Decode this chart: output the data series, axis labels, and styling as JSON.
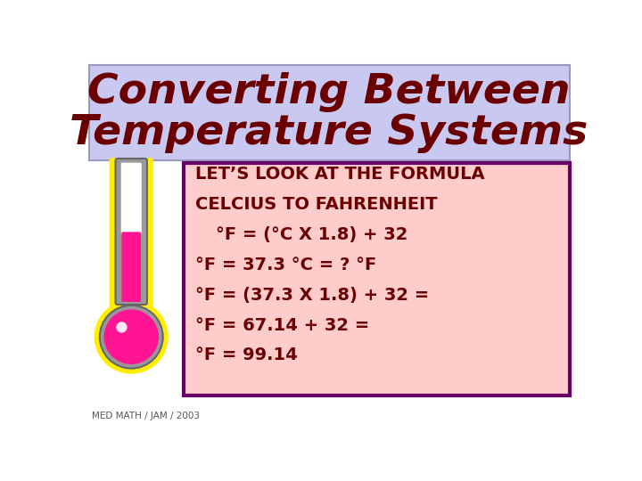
{
  "title_line1": "Converting Between",
  "title_line2": "Temperature Systems",
  "title_bg": "#c8c8f0",
  "title_color": "#6b0000",
  "title_border": "#9999bb",
  "content_bg": "#ffcccc",
  "content_border": "#660066",
  "content_color": "#6b0000",
  "bg_color": "#ffffff",
  "lines": [
    {
      "text": "LET’S LOOK AT THE FORMULA",
      "bold": true,
      "indent": false,
      "fontsize": 14
    },
    {
      "text": "CELCIUS TO FAHRENHEIT",
      "bold": true,
      "indent": false,
      "fontsize": 14
    },
    {
      "text": "°F = (°C X 1.8) + 32",
      "bold": true,
      "indent": true,
      "fontsize": 14
    },
    {
      "text": "°F = 37.3 °C = ? °F",
      "bold": true,
      "indent": false,
      "fontsize": 14
    },
    {
      "text": "°F = (37.3 X 1.8) + 32 =",
      "bold": true,
      "indent": false,
      "fontsize": 14
    },
    {
      "text": "°F = 67.14 + 32 =",
      "bold": true,
      "indent": false,
      "fontsize": 14
    },
    {
      "text": "°F = 99.14",
      "bold": true,
      "indent": false,
      "fontsize": 14
    }
  ],
  "footer": "MED MATH / JAM / 2003",
  "footer_color": "#555555",
  "therm_yellow": "#ffee00",
  "therm_gray": "#999999",
  "therm_pink": "#ff1493",
  "therm_white": "#ffffff"
}
